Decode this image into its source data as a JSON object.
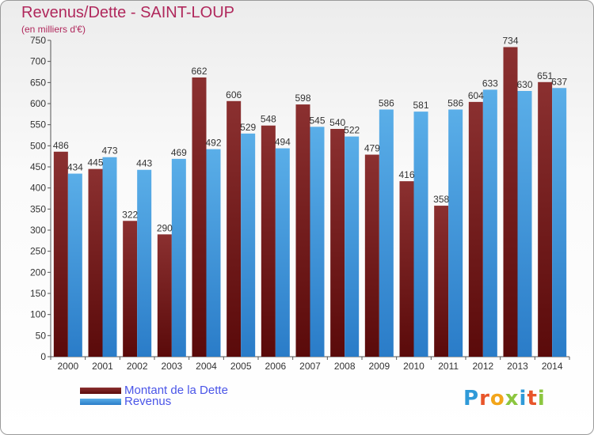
{
  "colors": {
    "title": "#b0285c",
    "dette_top": "#8b3030",
    "dette_bottom": "#5a0a0a",
    "revenus_top": "#5aaee8",
    "revenus_bottom": "#2a7cc8",
    "legend_text": "#4a55e8"
  },
  "chart_data": {
    "type": "bar",
    "title": "Revenus/Dette - SAINT-LOUP",
    "subtitle": "(en milliers d'€)",
    "categories": [
      "2000",
      "2001",
      "2002",
      "2003",
      "2004",
      "2005",
      "2006",
      "2007",
      "2008",
      "2009",
      "2010",
      "2011",
      "2012",
      "2013",
      "2014"
    ],
    "series": [
      {
        "name": "Montant de la Dette",
        "values": [
          486,
          445,
          322,
          290,
          662,
          606,
          548,
          598,
          540,
          479,
          416,
          358,
          604,
          734,
          651
        ]
      },
      {
        "name": "Revenus",
        "values": [
          434,
          473,
          443,
          469,
          492,
          529,
          494,
          545,
          522,
          586,
          581,
          586,
          633,
          630,
          637
        ]
      }
    ],
    "ylim": [
      0,
      750
    ],
    "ytick_step": 50,
    "grid": false,
    "legend_position": "bottom-left"
  },
  "logo": {
    "text": "Proxiti",
    "letters": [
      "P",
      "r",
      "o",
      "x",
      "i",
      "t",
      "i"
    ]
  }
}
